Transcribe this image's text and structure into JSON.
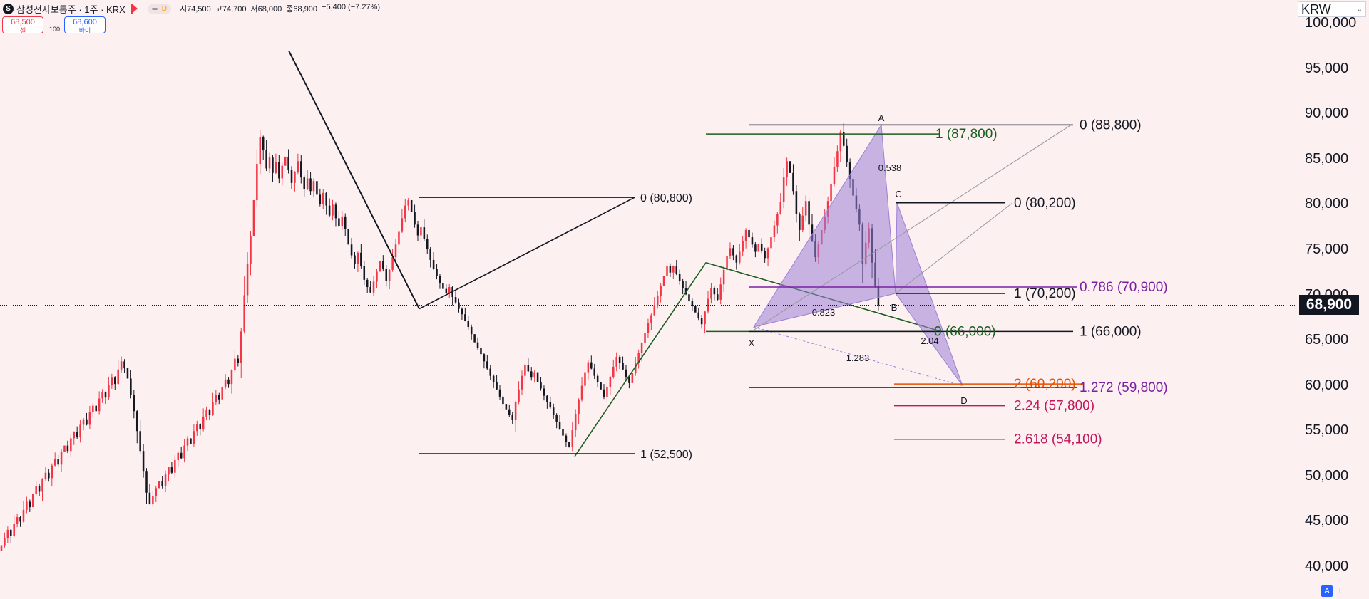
{
  "header": {
    "logo": "S",
    "symbol": "삼성전자보통주 · 1주 · KRX",
    "pill_label": "D",
    "ohlc": {
      "open": "시74,500",
      "high": "고74,700",
      "low": "저68,000",
      "close": "종68,900",
      "change": "−5,400 (−7.27%)"
    }
  },
  "trade": {
    "sell_price": "68,500",
    "sell_label": "셀",
    "quantity": "100",
    "buy_price": "68,600",
    "buy_label": "바이"
  },
  "currency": "KRW",
  "last_price": "68,900",
  "buttons": {
    "auto": "A",
    "log": "L"
  },
  "chart_data": {
    "type": "candlestick",
    "ylim": [
      37000,
      103500
    ],
    "y_ticks": [
      "100,000",
      "95,000",
      "90,000",
      "85,000",
      "80,000",
      "75,000",
      "70,000",
      "65,000",
      "60,000",
      "55,000",
      "50,000",
      "45,000",
      "40,000"
    ],
    "y_tick_values": [
      100000,
      95000,
      90000,
      85000,
      80000,
      75000,
      70000,
      65000,
      60000,
      55000,
      50000,
      45000,
      40000
    ],
    "last_price_value": 68900,
    "colors": {
      "up": "#f23645",
      "down": "#131722",
      "bg": "#fcf0f1"
    },
    "x_range": [
      0,
      290
    ],
    "closes": [
      42400,
      43200,
      44100,
      43400,
      44800,
      45500,
      45000,
      46300,
      47200,
      46600,
      48100,
      48900,
      48300,
      49700,
      50400,
      49800,
      51200,
      51900,
      51300,
      52700,
      53400,
      52800,
      54200,
      54900,
      54300,
      55700,
      56300,
      55700,
      57100,
      57800,
      57200,
      58600,
      59300,
      58700,
      60100,
      60900,
      60200,
      61800,
      62700,
      62000,
      60800,
      59000,
      57200,
      55000,
      52800,
      50600,
      48200,
      47000,
      47800,
      48700,
      49500,
      48900,
      50200,
      51000,
      50400,
      51800,
      52600,
      52000,
      53400,
      54200,
      53600,
      55000,
      55800,
      55200,
      56600,
      57300,
      56800,
      58200,
      59000,
      58500,
      59900,
      60700,
      60200,
      61700,
      63000,
      62500,
      66000,
      70000,
      73500,
      76500,
      80500,
      84500,
      87500,
      86000,
      84000,
      85200,
      83500,
      84700,
      82900,
      84300,
      85300,
      83800,
      82400,
      83600,
      84800,
      83000,
      81700,
      82900,
      81500,
      82600,
      81100,
      80100,
      81300,
      79900,
      78800,
      80000,
      78500,
      77600,
      78700,
      77300,
      75600,
      74400,
      73500,
      74700,
      73200,
      71700,
      70900,
      70300,
      71500,
      72600,
      73800,
      72900,
      71600,
      72800,
      74200,
      75600,
      77000,
      78500,
      79900,
      80500,
      79200,
      77800,
      76600,
      77500,
      76200,
      75100,
      73900,
      72900,
      72100,
      71300,
      70700,
      70200,
      70900,
      69800,
      69200,
      68500,
      67900,
      67200,
      66500,
      65700,
      64800,
      64200,
      63500,
      62700,
      61900,
      61100,
      60400,
      59600,
      58800,
      58000,
      57400,
      56800,
      56200,
      58200,
      59600,
      61100,
      62300,
      61600,
      60900,
      61500,
      60400,
      59700,
      58900,
      58200,
      57600,
      56800,
      56000,
      55200,
      54500,
      53800,
      53200,
      55100,
      56900,
      58500,
      60000,
      61500,
      62600,
      61900,
      61100,
      60400,
      59600,
      58800,
      59900,
      61000,
      62100,
      63200,
      62500,
      61800,
      61000,
      60300,
      61400,
      62500,
      63600,
      64700,
      65800,
      66900,
      67800,
      68900,
      69900,
      71000,
      72100,
      73200,
      72500,
      73200,
      72400,
      71600,
      70800,
      70100,
      69400,
      68800,
      68100,
      67500,
      66800,
      68200,
      69600,
      70800,
      70100,
      69500,
      71200,
      72800,
      74300,
      75200,
      74400,
      73600,
      74800,
      76000,
      77200,
      76400,
      75600,
      74800,
      75700,
      74900,
      74100,
      75200,
      76400,
      77700,
      79000,
      80300,
      83000,
      84800,
      83500,
      81500,
      79000,
      77200,
      78800,
      80400,
      77800,
      76000,
      74200,
      75600,
      77200,
      78700,
      80400,
      82300,
      84200,
      85900,
      88000,
      86500,
      84700,
      82800,
      81000,
      79500,
      77800,
      73500,
      75800,
      77400,
      73600,
      71000,
      68900
    ],
    "candle_range": [
      2,
      1285
    ],
    "harmonic_pattern": {
      "points": [
        "X",
        "A",
        "B",
        "C",
        "D"
      ],
      "labels": {
        "X": "X",
        "A": "A",
        "B": "B",
        "C": "C",
        "D": "D"
      },
      "prices": {
        "X": 66500,
        "A": 88800,
        "B": 70200,
        "C": 80200,
        "D": 60000
      },
      "ratios": {
        "xab": "0.823",
        "abc": "0.538",
        "bcd": "2.04",
        "xad": "1.283"
      }
    },
    "fib_levels": [
      {
        "text": "0 (80,800)",
        "price": 80800,
        "color": "#131722"
      },
      {
        "text": "1 (52,500)",
        "price": 52500,
        "color": "#131722"
      },
      {
        "text": "1 (87,800)",
        "price": 87800,
        "color": "#1b5e20"
      },
      {
        "text": "0 (66,000)",
        "price": 66000,
        "color": "#1b5e20"
      },
      {
        "text": "0 (88,800)",
        "price": 88800,
        "color": "#131722"
      },
      {
        "text": "1 (66,000)",
        "price": 66000,
        "color": "#131722"
      },
      {
        "text": "0 (80,200)",
        "price": 80200,
        "color": "#131722"
      },
      {
        "text": "1 (70,200)",
        "price": 70200,
        "color": "#131722"
      },
      {
        "text": "2 (60,200)",
        "price": 60200,
        "color": "#e65100"
      },
      {
        "text": "2.24 (57,800)",
        "price": 57800,
        "color": "#c2185b"
      },
      {
        "text": "2.618 (54,100)",
        "price": 54100,
        "color": "#c2185b"
      },
      {
        "text": "0.786 (70,900)",
        "price": 70900,
        "color": "#7b1fa2"
      },
      {
        "text": "1.272 (59,800)",
        "price": 59800,
        "color": "#7b1fa2"
      }
    ]
  }
}
